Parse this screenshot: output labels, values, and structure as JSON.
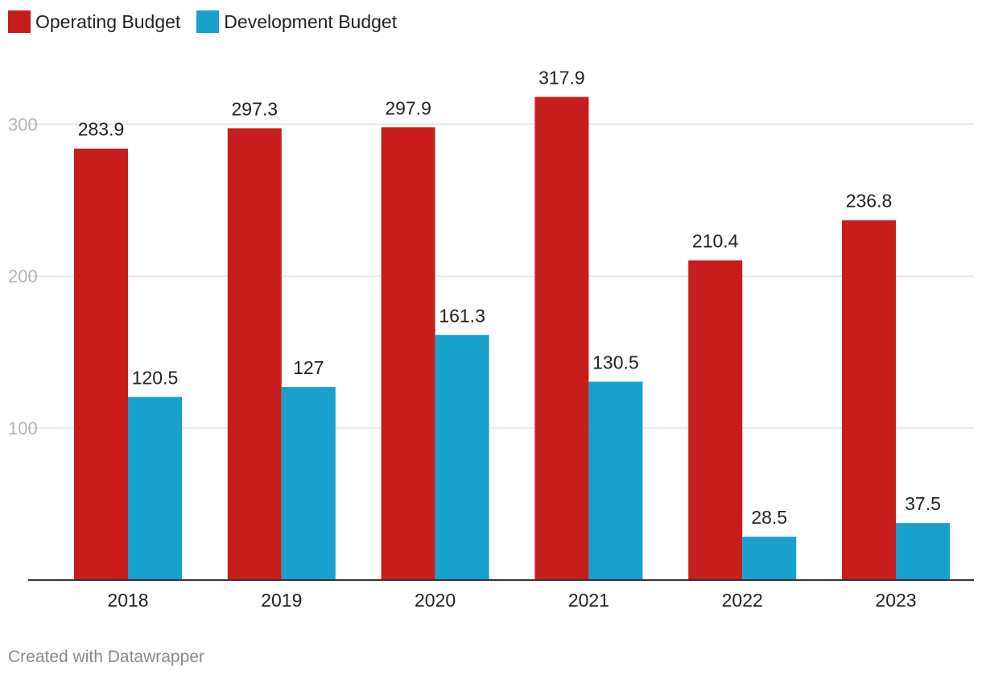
{
  "legend": {
    "items": [
      {
        "label": "Operating Budget",
        "color": "#c71e1d"
      },
      {
        "label": "Development Budget",
        "color": "#18a1cd"
      }
    ]
  },
  "footer": {
    "credit": "Created with Datawrapper"
  },
  "chart_data": {
    "type": "bar",
    "title": "",
    "xlabel": "",
    "ylabel": "",
    "categories": [
      "2018",
      "2019",
      "2020",
      "2021",
      "2022",
      "2023"
    ],
    "series": [
      {
        "name": "Operating Budget",
        "color": "#c71e1d",
        "values": [
          283.9,
          297.3,
          297.9,
          317.9,
          210.4,
          236.8
        ],
        "labels": [
          "283.9",
          "297.3",
          "297.9",
          "317.9",
          "210.4",
          "236.8"
        ]
      },
      {
        "name": "Development Budget",
        "color": "#18a1cd",
        "values": [
          120.5,
          127,
          161.3,
          130.5,
          28.5,
          37.5
        ],
        "labels": [
          "120.5",
          "127",
          "161.3",
          "130.5",
          "28.5",
          "37.5"
        ]
      }
    ],
    "yticks": [
      100,
      200,
      300
    ],
    "ytick_labels": [
      "100",
      "200",
      "300"
    ],
    "ylim": [
      0,
      340
    ],
    "grid": true,
    "legend_position": "top-left"
  }
}
